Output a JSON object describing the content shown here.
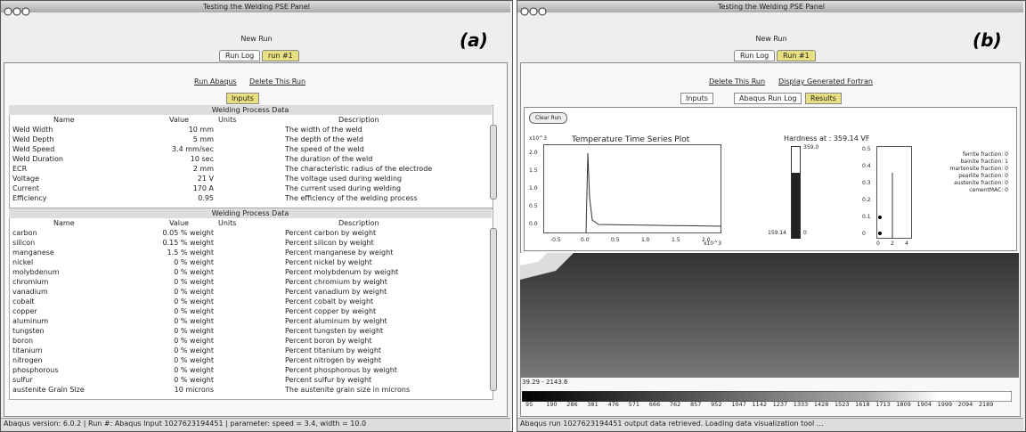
{
  "panels": [
    {
      "window_title": "Testing the Welding PSE Panel",
      "label": "(a)",
      "new_run": "New Run",
      "tabs": [
        "Run Log",
        "run #1"
      ],
      "actions": [
        "Run Abaqus",
        "Delete This Run"
      ],
      "subtabs": [
        "Inputs"
      ],
      "tables": [
        {
          "title": "Welding Process Data",
          "headers": [
            "Name",
            "Value",
            "Units",
            "Description"
          ],
          "rows": [
            [
              "Weld Width",
              "10 mm",
              "The width of the weld"
            ],
            [
              "Weld Depth",
              "5 mm",
              "The depth of the weld"
            ],
            [
              "Weld Speed",
              "3.4 mm/sec",
              "The speed of the weld"
            ],
            [
              "Weld Duration",
              "10 sec",
              "The duration of the weld"
            ],
            [
              "ECR",
              "2 mm",
              "The characteristic radius of the electrode"
            ],
            [
              "Voltage",
              "21 V",
              "The voltage used during welding"
            ],
            [
              "Current",
              "170 A",
              "The current used during welding"
            ],
            [
              "Efficiency",
              "0.95",
              "The efficiency of the welding process"
            ]
          ]
        },
        {
          "title": "Welding Process Data",
          "headers": [
            "Name",
            "Value",
            "Units",
            "Description"
          ],
          "rows": [
            [
              "carbon",
              "0.05 % weight",
              "Percent carbon by weight"
            ],
            [
              "silicon",
              "0.15 % weight",
              "Percent silicon by weight"
            ],
            [
              "manganese",
              "1.5 % weight",
              "Percent manganese by weight"
            ],
            [
              "nickel",
              "0 % weight",
              "Percent nickel by weight"
            ],
            [
              "molybdenum",
              "0 % weight",
              "Percent molybdenum by weight"
            ],
            [
              "chromium",
              "0 % weight",
              "Percent chromium by weight"
            ],
            [
              "vanadium",
              "0 % weight",
              "Percent vanadium by weight"
            ],
            [
              "cobalt",
              "0 % weight",
              "Percent cobalt by weight"
            ],
            [
              "copper",
              "0 % weight",
              "Percent copper by weight"
            ],
            [
              "aluminum",
              "0 % weight",
              "Percent aluminum by weight"
            ],
            [
              "tungsten",
              "0 % weight",
              "Percent tungsten by weight"
            ],
            [
              "boron",
              "0 % weight",
              "Percent boron by weight"
            ],
            [
              "titanium",
              "0 % weight",
              "Percent titanium by weight"
            ],
            [
              "nitrogen",
              "0 % weight",
              "Percent nitrogen by weight"
            ],
            [
              "phosphorous",
              "0 % weight",
              "Percent phosphorous by weight"
            ],
            [
              "sulfur",
              "0 % weight",
              "Percent sulfur by weight"
            ],
            [
              "austenite Grain Size",
              "10 microns",
              "The austenite grain size in microns"
            ]
          ]
        }
      ],
      "status": "Abaqus version: 6.0.2 | Run #: Abaqus Input 1027623194451 | parameter: speed = 3.4, width = 10.0"
    },
    {
      "window_title": "Testing the Welding PSE Panel",
      "label": "(b)",
      "new_run": "New Run",
      "tabs": [
        "Run Log",
        "Run #1"
      ],
      "actions": [
        "Delete This Run",
        "Display Generated Fortran"
      ],
      "subtabs": [
        "Inputs",
        "Abaqus Run Log",
        "Results"
      ],
      "clear_button": "Clear Run",
      "plot": {
        "title": "Temperature Time Series Plot",
        "x_tick_labels": [
          "-0.5",
          "0.0",
          "0.5",
          "1.0",
          "1.5",
          "2.0"
        ],
        "y_tick_labels": [
          "2.0",
          "1.5",
          "1.0",
          "0.5",
          "0.0"
        ],
        "y_exponent": "x10^3",
        "x_exponent": "x10^3"
      },
      "hardness": {
        "title": "Hardness at : 359.14 VF",
        "top": "359.0",
        "bottom": "159.14",
        "zero": "0"
      },
      "fractions": {
        "y_tick_labels": [
          "0.5",
          "0.4",
          "0.3",
          "0.2",
          "0.1",
          "0"
        ],
        "x_tick_labels": [
          "0",
          "2",
          "4"
        ],
        "legend": [
          "ferrite fraction: 0",
          "bainite fraction: 1",
          "martensite fraction: 0",
          "pearlite fraction: 0",
          "austenite fraction: 0",
          "cementMAC: 0"
        ]
      },
      "range_label": "39.29 - 2143.6",
      "colorbar_labels": [
        "95",
        "190",
        "286",
        "381",
        "476",
        "571",
        "666",
        "762",
        "857",
        "952",
        "1047",
        "1142",
        "1237",
        "1333",
        "1428",
        "1523",
        "1618",
        "1713",
        "1809",
        "1904",
        "1999",
        "2094",
        "2189"
      ],
      "status": "Abaqus run 1027623194451 output data retrieved. Loading data visualization tool ..."
    }
  ]
}
